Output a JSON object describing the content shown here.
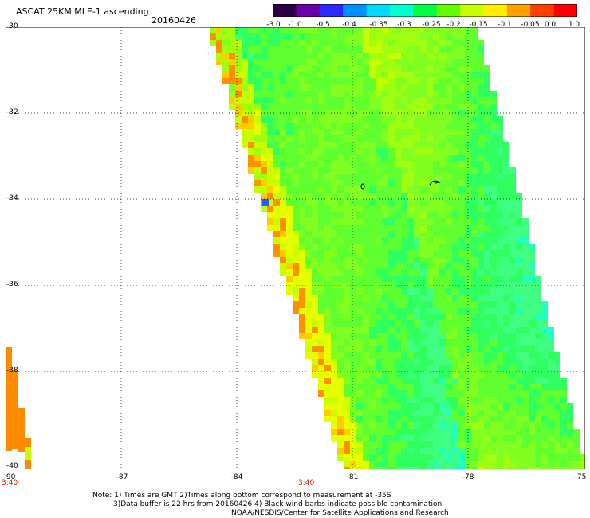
{
  "header": {
    "title": "ASCAT 25KM MLE-1 ascending",
    "date": "20160426"
  },
  "colorbar": {
    "labels": [
      "-3.0",
      "-1.0",
      "-0.5",
      "-0.4",
      "-0.35",
      "-0.3",
      "-0.25",
      "-0.2",
      "-0.15",
      "-0.1",
      "-0.05",
      "0.0",
      "1.0"
    ],
    "colors": [
      "#2a0040",
      "#6a00a8",
      "#2a2aff",
      "#0090ff",
      "#00d8ff",
      "#00ffd0",
      "#00ff40",
      "#60ff00",
      "#c8ff00",
      "#ffee00",
      "#ffa000",
      "#ff4000",
      "#ff0000"
    ]
  },
  "axes": {
    "y_ticks": [
      "-30",
      "-32",
      "-34",
      "-36",
      "-38",
      "-40"
    ],
    "x_ticks": [
      "-90",
      "-87",
      "-84",
      "-81",
      "-78",
      "-75"
    ],
    "time_labels": [
      "3:40",
      "3:40"
    ]
  },
  "notes": {
    "line1": "Note: 1) Times are GMT 2)Times along bottom correspond to measurement at -35S",
    "line2": "3)Data buffer is 22 hrs from 20160426 4) Black wind barbs indicate possible contamination",
    "line3": "NOAA/NESDIS/Center for Satellite Applications and Research"
  }
}
